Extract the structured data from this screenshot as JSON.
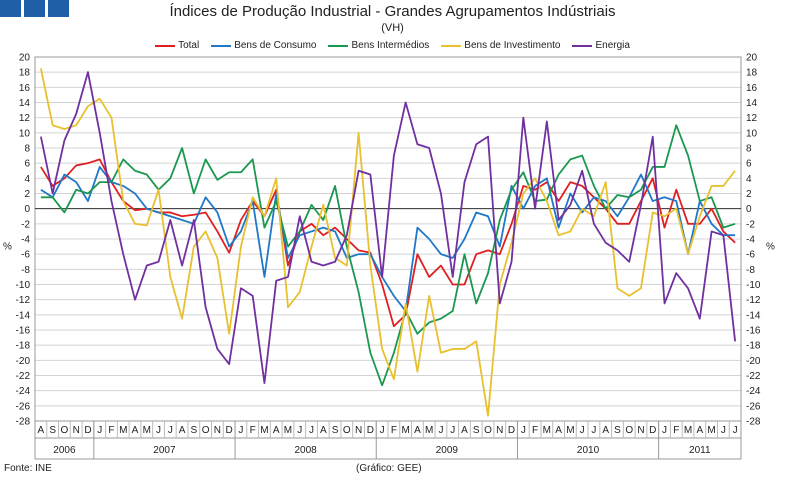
{
  "chart_data": {
    "type": "line",
    "title": "Índices de Produção Industrial - Grandes Agrupamentos Indústriais",
    "subtitle": "(VH)",
    "ylabel_left": "%",
    "ylabel_right": "%",
    "ylim": [
      -28,
      20
    ],
    "yticks": [
      20,
      18,
      16,
      14,
      12,
      10,
      8,
      6,
      4,
      2,
      0,
      -2,
      -4,
      -6,
      -8,
      -10,
      -12,
      -14,
      -16,
      -18,
      -20,
      -22,
      -24,
      -26,
      -28
    ],
    "grid": true,
    "legend_position": "top-center",
    "months": [
      "A",
      "S",
      "O",
      "N",
      "D",
      "J",
      "F",
      "M",
      "A",
      "M",
      "J",
      "J",
      "A",
      "S",
      "O",
      "N",
      "D",
      "J",
      "F",
      "M",
      "A",
      "M",
      "J",
      "J",
      "A",
      "S",
      "O",
      "N",
      "D",
      "J",
      "F",
      "M",
      "A",
      "M",
      "J",
      "J",
      "A",
      "S",
      "O",
      "N",
      "D",
      "J",
      "F",
      "M",
      "A",
      "M",
      "J",
      "J",
      "A",
      "S",
      "O",
      "N",
      "D",
      "J",
      "F",
      "M",
      "A",
      "M",
      "J",
      "J"
    ],
    "years": [
      {
        "label": "2006",
        "start": 0,
        "count": 5
      },
      {
        "label": "2007",
        "start": 5,
        "count": 12
      },
      {
        "label": "2008",
        "start": 17,
        "count": 12
      },
      {
        "label": "2009",
        "start": 29,
        "count": 12
      },
      {
        "label": "2010",
        "start": 41,
        "count": 12
      },
      {
        "label": "2011",
        "start": 53,
        "count": 7
      }
    ],
    "series": [
      {
        "name": "Total",
        "color": "#e02020",
        "values": [
          5.5,
          3.0,
          4.0,
          5.7,
          6.0,
          6.5,
          3.5,
          1.0,
          -0.2,
          0.0,
          -0.5,
          -0.5,
          -1.0,
          -0.8,
          -0.5,
          -3.0,
          -5.8,
          -1.5,
          1.0,
          -1.0,
          2.5,
          -7.5,
          -3.0,
          -2.0,
          -3.5,
          -2.5,
          -4.0,
          -5.5,
          -5.8,
          -10.0,
          -15.5,
          -14.0,
          -6.0,
          -9.0,
          -7.5,
          -10.0,
          -10.0,
          -6.0,
          -5.5,
          -6.0,
          -2.0,
          3.0,
          2.5,
          3.5,
          1.0,
          3.5,
          3.0,
          1.5,
          0.0,
          -2.0,
          -2.0,
          1.0,
          4.0,
          -2.5,
          2.5,
          -2.0,
          -2.0,
          0.0,
          -3.0,
          -4.5
        ]
      },
      {
        "name": "Bens de Consumo",
        "color": "#1f78c8",
        "values": [
          2.5,
          1.5,
          4.5,
          3.5,
          1.0,
          5.5,
          3.5,
          3.0,
          2.0,
          0.0,
          -0.5,
          -1.0,
          -1.5,
          -2.0,
          1.5,
          -0.5,
          -5.0,
          -3.0,
          1.0,
          -9.0,
          2.0,
          -6.5,
          -3.5,
          -3.0,
          -2.5,
          -3.0,
          -6.5,
          -6.0,
          -6.0,
          -9.0,
          -11.5,
          -13.5,
          -2.5,
          -4.0,
          -6.0,
          -6.5,
          -4.0,
          -0.5,
          -1.0,
          -5.0,
          3.0,
          0.0,
          3.0,
          4.0,
          -2.5,
          2.0,
          -0.5,
          1.5,
          1.0,
          -1.0,
          1.5,
          4.5,
          1.0,
          1.5,
          1.0,
          -6.0,
          1.0,
          -2.0,
          -3.5,
          -3.5
        ]
      },
      {
        "name": "Bens Intermédios",
        "color": "#1a9850",
        "values": [
          1.5,
          1.5,
          -0.5,
          2.5,
          2.0,
          3.5,
          3.5,
          6.5,
          5.0,
          4.5,
          2.5,
          4.0,
          8.0,
          2.0,
          6.5,
          3.8,
          4.8,
          4.8,
          6.5,
          -2.5,
          1.0,
          -5.0,
          -3.0,
          0.5,
          -1.5,
          3.0,
          -5.0,
          -11.0,
          -19.0,
          -23.3,
          -19.0,
          -13.5,
          -16.5,
          -15.0,
          -14.5,
          -13.5,
          -6.0,
          -12.5,
          -8.5,
          -1.5,
          2.5,
          4.8,
          1.0,
          1.2,
          4.5,
          6.5,
          7.0,
          3.0,
          0.0,
          1.8,
          1.5,
          2.5,
          5.5,
          5.5,
          11.0,
          7.0,
          1.0,
          1.5,
          -2.5,
          -2.0
        ]
      },
      {
        "name": "Bens de Investimento",
        "color": "#e8c030",
        "values": [
          18.5,
          11.0,
          10.5,
          11.0,
          13.5,
          14.5,
          12.0,
          1.0,
          -2.0,
          -2.2,
          2.5,
          -9.0,
          -14.5,
          -5.0,
          -3.0,
          -6.5,
          -16.5,
          -5.0,
          1.5,
          -1.0,
          4.0,
          -13.0,
          -11.0,
          -5.0,
          0.5,
          -6.5,
          -7.5,
          10.0,
          -7.5,
          -18.5,
          -22.5,
          -12.5,
          -21.5,
          -11.5,
          -19.0,
          -18.5,
          -18.5,
          -17.5,
          -27.3,
          -10.0,
          -4.5,
          2.0,
          4.0,
          1.0,
          -3.5,
          -3.0,
          0.0,
          -1.0,
          3.5,
          -10.5,
          -11.5,
          -10.5,
          -0.5,
          -1.0,
          0.0,
          -6.0,
          -1.0,
          3.0,
          3.0,
          5.0
        ]
      },
      {
        "name": "Energia",
        "color": "#7030a0",
        "values": [
          9.5,
          2.0,
          9.0,
          12.5,
          18.0,
          10.0,
          1.0,
          -6.0,
          -12.0,
          -7.5,
          -7.0,
          -1.5,
          -7.5,
          -1.5,
          -13.0,
          -18.5,
          -20.5,
          -10.5,
          -11.5,
          -23.0,
          -9.5,
          -9.0,
          -1.0,
          -7.0,
          -7.5,
          -7.0,
          -3.5,
          5.0,
          4.5,
          -9.0,
          7.0,
          14.0,
          8.5,
          8.0,
          2.0,
          -9.0,
          3.5,
          8.5,
          9.5,
          -12.5,
          -7.0,
          12.0,
          0.0,
          11.5,
          -1.5,
          0.5,
          5.0,
          -2.0,
          -4.5,
          -5.5,
          -7.0,
          0.5,
          9.5,
          -12.5,
          -8.5,
          -10.5,
          -14.5,
          -3.0,
          -3.5,
          -17.5
        ]
      }
    ]
  },
  "footer": {
    "source": "Fonte: INE",
    "credit": "(Gráfico: GEE)"
  },
  "logo_colors": [
    "#1f5fa8",
    "#1f5fa8",
    "#1f5fa8"
  ]
}
